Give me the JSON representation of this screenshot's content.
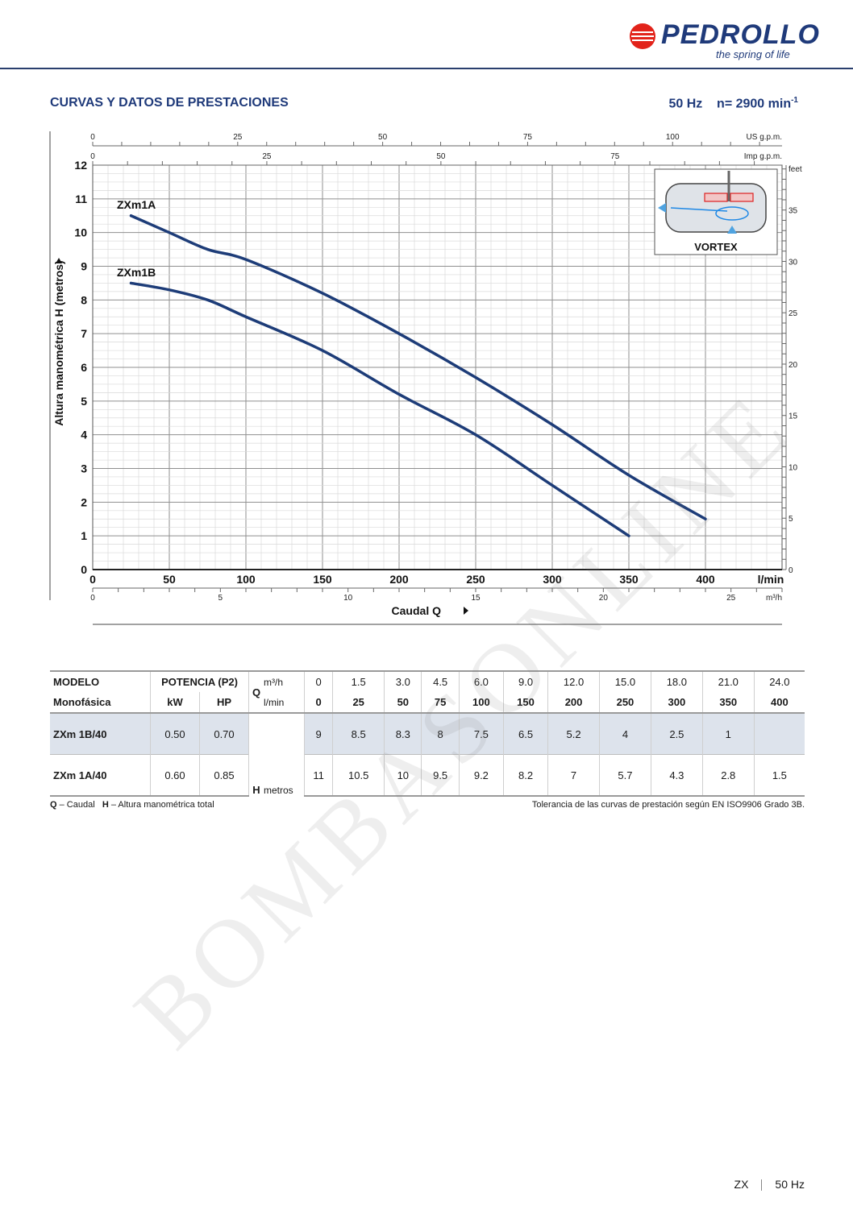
{
  "brand": {
    "name": "PEDROLLO",
    "tagline": "the spring of life"
  },
  "header": {
    "title": "CURVAS Y DATOS DE PRESTACIONES",
    "freq": "50 Hz",
    "speed": "n= 2900 min",
    "speed_sup": "-1"
  },
  "chart_data": {
    "type": "line",
    "x_label": "Caudal Q",
    "y_label": "Altura manométrica H (metros)",
    "x_unit": "l/min",
    "x_range": [
      0,
      450
    ],
    "y_range": [
      0,
      12
    ],
    "x_ticks": [
      0,
      50,
      100,
      150,
      200,
      250,
      300,
      350,
      400
    ],
    "y_ticks": [
      0,
      1,
      2,
      3,
      4,
      5,
      6,
      7,
      8,
      9,
      10,
      11,
      12
    ],
    "grid": true,
    "top_axes": [
      {
        "unit": "US g.p.m.",
        "ticks": [
          0,
          25,
          50,
          75,
          100
        ],
        "per_lmin": 0.264172
      },
      {
        "unit": "Imp g.p.m.",
        "ticks": [
          0,
          25,
          50,
          75
        ],
        "per_lmin": 0.219969
      }
    ],
    "bottom_axis2": {
      "unit": "m³/h",
      "ticks": [
        0,
        5,
        10,
        15,
        20,
        25
      ],
      "per_lmin": 0.06
    },
    "right_axis": {
      "unit": "feet",
      "ticks": [
        0,
        5,
        10,
        15,
        20,
        25,
        30,
        35
      ],
      "per_m": 3.28084
    },
    "series": [
      {
        "name": "ZXm1A",
        "color": "#1d3c78",
        "x": [
          25,
          50,
          75,
          100,
          150,
          200,
          250,
          300,
          350,
          400
        ],
        "y": [
          10.5,
          10,
          9.5,
          9.2,
          8.2,
          7,
          5.7,
          4.3,
          2.8,
          1.5
        ]
      },
      {
        "name": "ZXm1B",
        "color": "#1d3c78",
        "x": [
          25,
          50,
          75,
          100,
          150,
          200,
          250,
          300,
          350
        ],
        "y": [
          8.5,
          8.3,
          8,
          7.5,
          6.5,
          5.2,
          4,
          2.5,
          1
        ]
      }
    ],
    "inset": {
      "label": "VORTEX"
    }
  },
  "table": {
    "head": {
      "modelo": "MODELO",
      "monofasica": "Monofásica",
      "potencia": "POTENCIA (P2)",
      "kw": "kW",
      "hp": "HP",
      "q": "Q",
      "m3h": "m³/h",
      "lmin": "l/min",
      "h": "H",
      "metros": "metros"
    },
    "m3h": [
      "0",
      "1.5",
      "3.0",
      "4.5",
      "6.0",
      "9.0",
      "12.0",
      "15.0",
      "18.0",
      "21.0",
      "24.0"
    ],
    "lmin": [
      "0",
      "25",
      "50",
      "75",
      "100",
      "150",
      "200",
      "250",
      "300",
      "350",
      "400"
    ],
    "rows": [
      {
        "model": "ZXm 1B/40",
        "kw": "0.50",
        "hp": "0.70",
        "h": [
          "9",
          "8.5",
          "8.3",
          "8",
          "7.5",
          "6.5",
          "5.2",
          "4",
          "2.5",
          "1",
          ""
        ]
      },
      {
        "model": "ZXm 1A/40",
        "kw": "0.60",
        "hp": "0.85",
        "h": [
          "11",
          "10.5",
          "10",
          "9.5",
          "9.2",
          "8.2",
          "7",
          "5.7",
          "4.3",
          "2.8",
          "1.5"
        ]
      }
    ]
  },
  "notes": {
    "q": "Q",
    "q_text": "– Caudal",
    "h": "H",
    "h_text": "– Altura manométrica total",
    "tolerance": "Tolerancia de las curvas de prestación según EN ISO9906 Grado 3B."
  },
  "watermark": "BOMBASONLINE",
  "footer": {
    "series": "ZX",
    "freq": "50 Hz"
  },
  "colors": {
    "brand": "#1f3a7a",
    "curve": "#1d3c78",
    "logo_red": "#e2231a"
  }
}
